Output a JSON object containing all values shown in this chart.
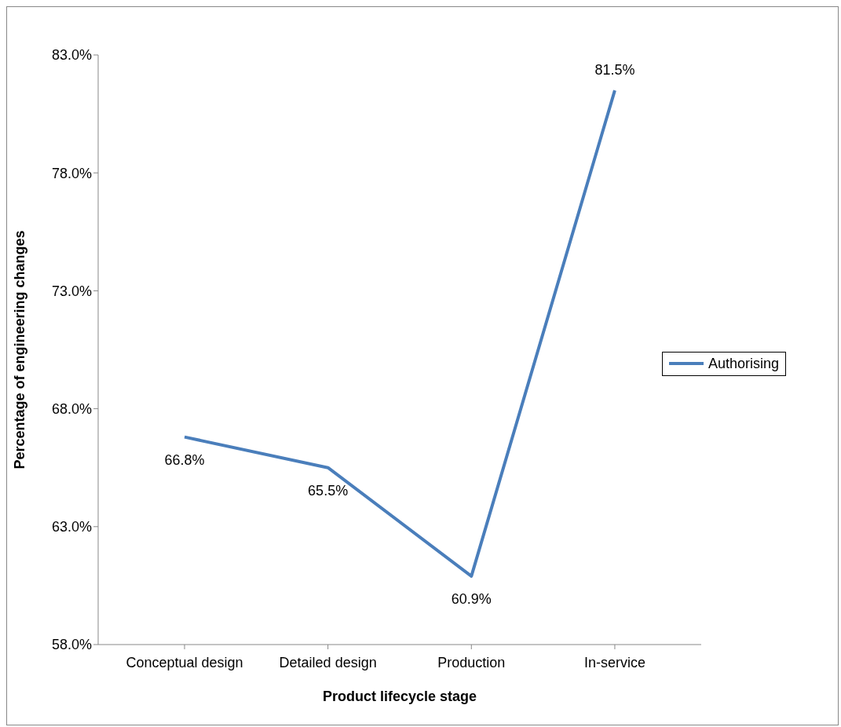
{
  "chart_data": {
    "type": "line",
    "xlabel": "Product lifecycle stage",
    "ylabel": "Percentage of engineering changes",
    "categories": [
      "Conceptual design",
      "Detailed design",
      "Production",
      "In-service"
    ],
    "series": [
      {
        "name": "Authorising",
        "color": "#4a7ebb",
        "values": [
          66.8,
          65.5,
          60.9,
          81.5
        ],
        "value_labels": [
          "66.8%",
          "65.5%",
          "60.9%",
          "81.5%"
        ]
      }
    ],
    "ylim": [
      58,
      83
    ],
    "yticks": [
      {
        "value": 58,
        "label": "58.0%"
      },
      {
        "value": 63,
        "label": "63.0%"
      },
      {
        "value": 68,
        "label": "68.0%"
      },
      {
        "value": 73,
        "label": "73.0%"
      },
      {
        "value": 78,
        "label": "78.0%"
      },
      {
        "value": 83,
        "label": "83.0%"
      }
    ],
    "grid": false,
    "legend": "right",
    "marker": "none",
    "line_style": "solid"
  }
}
